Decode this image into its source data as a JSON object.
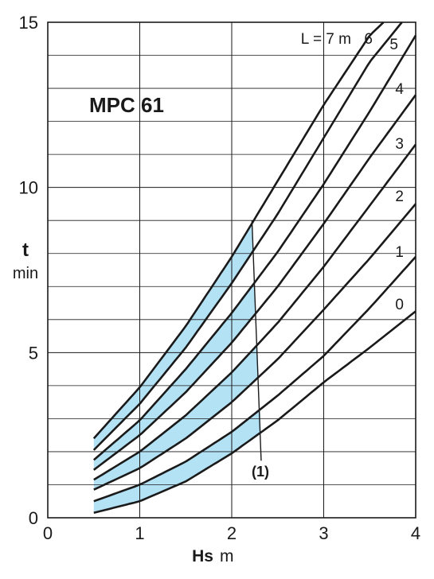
{
  "chart_data": {
    "type": "line",
    "title": "MPC 61",
    "xlabel": "Hs",
    "xlabel_unit": "m",
    "ylabel": "t",
    "ylabel_unit": "min",
    "xlim": [
      0,
      4
    ],
    "ylim": [
      0,
      15
    ],
    "x_ticks": [
      "0",
      "1",
      "2",
      "3",
      "4"
    ],
    "y_ticks": [
      "0",
      "5",
      "10",
      "15"
    ],
    "grid": true,
    "shaded_region_color": "#b4e2f5",
    "curve_color": "#1a1a1a",
    "series": [
      {
        "label": "0",
        "x": [
          0.5,
          1.0,
          1.5,
          2.0,
          2.5,
          3.0,
          3.5,
          4.0
        ],
        "y": [
          0.15,
          0.5,
          1.1,
          1.95,
          2.95,
          4.1,
          5.15,
          6.25
        ]
      },
      {
        "label": "1",
        "x": [
          0.5,
          1.0,
          1.5,
          2.0,
          2.5,
          3.0,
          3.5,
          4.0
        ],
        "y": [
          0.5,
          1.0,
          1.7,
          2.6,
          3.7,
          4.9,
          6.35,
          7.9
        ]
      },
      {
        "label": "2",
        "x": [
          0.5,
          1.0,
          1.5,
          2.0,
          2.5,
          3.0,
          3.5,
          4.0
        ],
        "y": [
          0.85,
          1.5,
          2.4,
          3.5,
          4.8,
          6.3,
          7.85,
          9.5
        ]
      },
      {
        "label": "3",
        "x": [
          0.5,
          1.0,
          1.5,
          2.0,
          2.5,
          3.0,
          3.5,
          4.0
        ],
        "y": [
          1.15,
          2.0,
          3.1,
          4.4,
          5.9,
          7.6,
          9.45,
          11.3
        ]
      },
      {
        "label": "4",
        "x": [
          0.5,
          1.0,
          1.5,
          2.0,
          2.5,
          3.0,
          3.5,
          4.0
        ],
        "y": [
          1.45,
          2.5,
          3.8,
          5.3,
          7.0,
          8.9,
          10.9,
          12.8
        ]
      },
      {
        "label": "5",
        "x": [
          0.5,
          1.0,
          1.5,
          2.0,
          2.5,
          3.0,
          3.5,
          4.0
        ],
        "y": [
          1.75,
          2.95,
          4.5,
          6.2,
          8.05,
          10.1,
          12.3,
          14.6
        ]
      },
      {
        "label": "6",
        "x": [
          0.5,
          1.0,
          1.5,
          2.0,
          2.5,
          3.0,
          3.5,
          3.85
        ],
        "y": [
          2.05,
          3.45,
          5.15,
          7.1,
          9.2,
          11.5,
          13.8,
          15.0
        ]
      },
      {
        "label": "L = 7 m",
        "x": [
          0.5,
          1.0,
          1.5,
          2.0,
          2.5,
          3.0,
          3.5,
          3.65
        ],
        "y": [
          2.4,
          3.95,
          5.8,
          7.9,
          10.2,
          12.5,
          14.6,
          15.0
        ]
      }
    ],
    "boundary_line": {
      "label": "(1)",
      "x": [
        2.22,
        2.32
      ],
      "y": [
        9.0,
        2.45
      ]
    },
    "shaded_bands": [
      {
        "between": [
          "6",
          "L = 7 m"
        ]
      },
      {
        "between": [
          "4",
          "5"
        ]
      },
      {
        "between": [
          "2",
          "3"
        ]
      },
      {
        "between": [
          "0",
          "1"
        ]
      }
    ]
  }
}
